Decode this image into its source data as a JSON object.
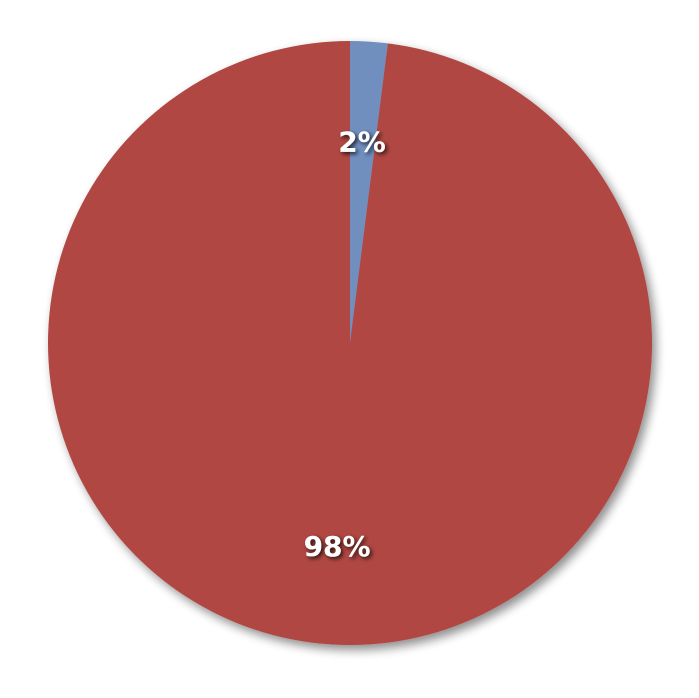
{
  "chart_data": {
    "type": "pie",
    "slices": [
      {
        "value": 2,
        "label": "2%",
        "color": "#6f8fbf"
      },
      {
        "value": 98,
        "label": "98%",
        "color": "#b04642"
      }
    ],
    "start_angle_deg": 0,
    "direction": "clockwise",
    "legend": "none",
    "title": ""
  }
}
